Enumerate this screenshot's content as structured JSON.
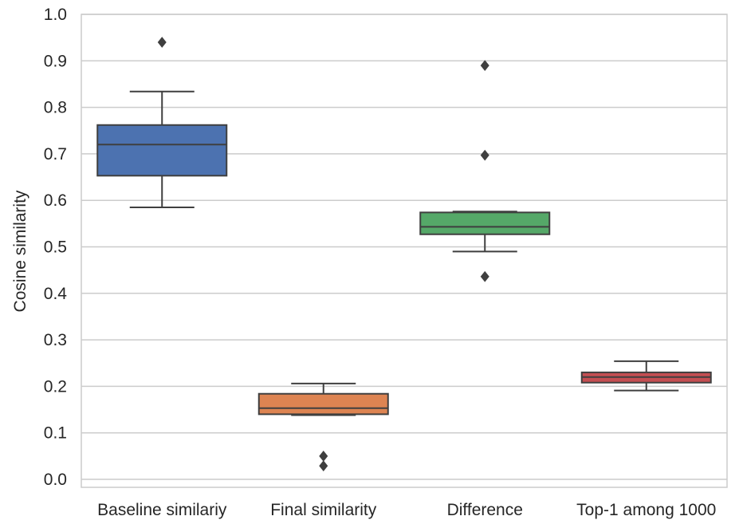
{
  "chart_data": {
    "type": "box",
    "title": "",
    "xlabel": "",
    "ylabel": "Cosine similarity",
    "ylim": [
      0.0,
      1.0
    ],
    "yticks": [
      "0.0",
      "0.1",
      "0.2",
      "0.3",
      "0.4",
      "0.5",
      "0.6",
      "0.7",
      "0.8",
      "0.9",
      "1.0"
    ],
    "grid": "horizontal",
    "categories": [
      "Baseline similariy",
      "Final similarity",
      "Difference",
      "Top-1 among 1000"
    ],
    "boxes": [
      {
        "category": "Baseline similariy",
        "color": "#4C72B0",
        "whisker_low": 0.585,
        "q1": 0.653,
        "median": 0.72,
        "q3": 0.762,
        "whisker_high": 0.834,
        "outliers": [
          0.94
        ]
      },
      {
        "category": "Final similarity",
        "color": "#DD8452",
        "whisker_low": 0.138,
        "q1": 0.14,
        "median": 0.153,
        "q3": 0.184,
        "whisker_high": 0.206,
        "outliers": [
          0.05,
          0.029
        ]
      },
      {
        "category": "Difference",
        "color": "#55A868",
        "whisker_low": 0.49,
        "q1": 0.527,
        "median": 0.543,
        "q3": 0.574,
        "whisker_high": 0.576,
        "outliers": [
          0.89,
          0.697,
          0.436
        ]
      },
      {
        "category": "Top-1 among 1000",
        "color": "#C44E52",
        "whisker_low": 0.191,
        "q1": 0.208,
        "median": 0.22,
        "q3": 0.23,
        "whisker_high": 0.254,
        "outliers": []
      }
    ]
  }
}
